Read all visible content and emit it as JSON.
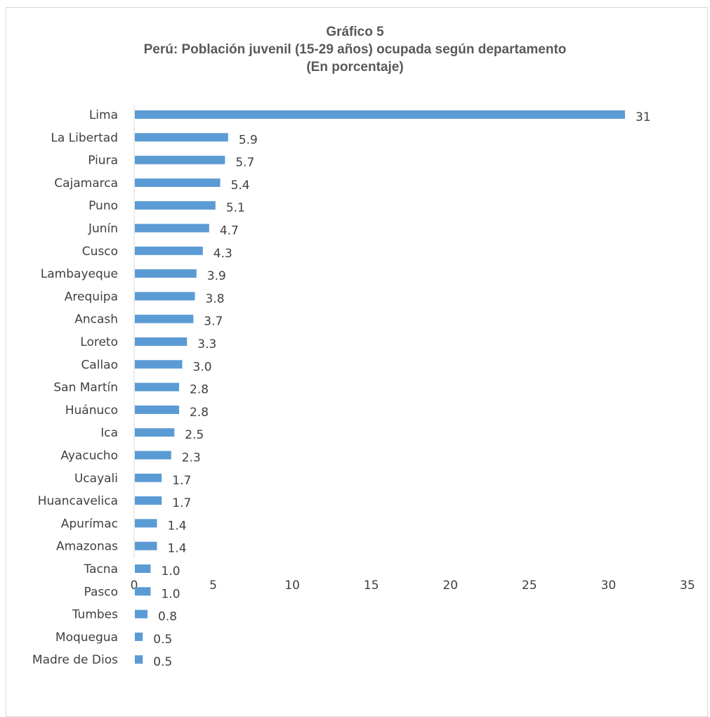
{
  "chart_data": {
    "type": "bar",
    "orientation": "horizontal",
    "title": "Gráfico 5",
    "subtitle": "Perú: Población juvenil (15-29 años) ocupada según departamento",
    "subtitle2": "(En porcentaje)",
    "xlabel": "",
    "ylabel": "",
    "xlim": [
      0,
      35
    ],
    "xticks": [
      0,
      5,
      10,
      15,
      20,
      25,
      30,
      35
    ],
    "grid": false,
    "legend": "none",
    "bar_color": "#5b9bd5",
    "categories": [
      "Lima",
      "La Libertad",
      "Piura",
      "Cajamarca",
      "Puno",
      "Junín",
      "Cusco",
      "Lambayeque",
      "Arequipa",
      "Ancash",
      "Loreto",
      "Callao",
      "San Martín",
      "Huánuco",
      "Ica",
      "Ayacucho",
      "Ucayali",
      "Huancavelica",
      "Apurímac",
      "Amazonas",
      "Tacna",
      "Pasco",
      "Tumbes",
      "Moquegua",
      "Madre de Dios"
    ],
    "values": [
      31,
      5.9,
      5.7,
      5.4,
      5.1,
      4.7,
      4.3,
      3.9,
      3.8,
      3.7,
      3.3,
      3.0,
      2.8,
      2.8,
      2.5,
      2.3,
      1.7,
      1.7,
      1.4,
      1.4,
      1.0,
      1.0,
      0.8,
      0.5,
      0.5
    ],
    "value_labels": [
      "31",
      "5.9",
      "5.7",
      "5.4",
      "5.1",
      "4.7",
      "4.3",
      "3.9",
      "3.8",
      "3.7",
      "3.3",
      "3.0",
      "2.8",
      "2.8",
      "2.5",
      "2.3",
      "1.7",
      "1.7",
      "1.4",
      "1.4",
      "1.0",
      "1.0",
      "0.8",
      "0.5",
      "0.5"
    ]
  }
}
